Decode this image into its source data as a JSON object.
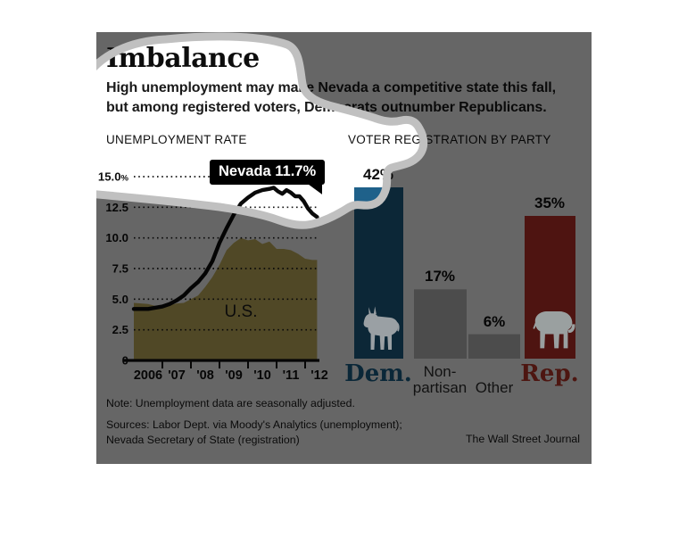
{
  "header": {
    "title": "Imbalance",
    "subtitle_line1": "High unemployment may make Nevada a competitive state this fall,",
    "subtitle_line2": "but among registered voters, Democrats outnumber Republicans."
  },
  "left_chart": {
    "heading": "UNEMPLOYMENT RATE",
    "callout": "Nevada 11.7%",
    "area_label": "U.S."
  },
  "right_chart": {
    "heading": "VOTER REGISTRATION BY PARTY",
    "labels": {
      "dem": "Dem.",
      "non_line1": "Non-",
      "non_line2": "partisan",
      "other": "Other",
      "rep": "Rep."
    }
  },
  "footer": {
    "note": "Note: Unemployment data are seasonally adjusted.",
    "sources_line1": "Sources: Labor Dept. via Moody's Analytics (unemployment);",
    "sources_line2": "Nevada Secretary of State (registration)",
    "credit": "The Wall Street Journal"
  },
  "colors": {
    "us_area": "#c9b560",
    "dem_blue": "#1f618a",
    "rep_red": "#c2332b",
    "neutral_bar": "#bfbfbf",
    "dem_text": "#1b638c",
    "rep_text": "#c0392b",
    "nevada_line": "#0a0a0a",
    "halo_gray": "#c0c0c0",
    "dim_overlay": "rgba(0,0,0,0.6)",
    "icon_gray": "#9aa0a2"
  },
  "chart_data": [
    {
      "type": "line",
      "title": "UNEMPLOYMENT RATE",
      "unit": "percent",
      "ylim": [
        0,
        15
      ],
      "grid": "dotted",
      "x_ticks": [
        "2006",
        "'07",
        "'08",
        "'09",
        "'10",
        "'11",
        "'12"
      ],
      "y_ticks": [
        "0",
        "2.5",
        "5.0",
        "7.5",
        "10.0",
        "12.5",
        "15.0%"
      ],
      "grid_values": [
        2.5,
        5,
        7.5,
        10,
        12.5,
        15
      ],
      "annotation": {
        "text": "Nevada 11.7%",
        "value": 11.7
      },
      "series": [
        {
          "name": "Nevada",
          "style": "line",
          "color": "#0a0a0a",
          "x": [
            2006,
            2006.25,
            2006.5,
            2006.75,
            2007,
            2007.25,
            2007.5,
            2007.75,
            2008,
            2008.25,
            2008.5,
            2008.75,
            2009,
            2009.25,
            2009.5,
            2009.75,
            2010,
            2010.25,
            2010.5,
            2010.75,
            2010.9,
            2011.05,
            2011.2,
            2011.35,
            2011.5,
            2011.65,
            2011.8,
            2011.95,
            2012.1,
            2012.25,
            2012.42
          ],
          "y": [
            4.2,
            4.2,
            4.2,
            4.3,
            4.4,
            4.6,
            4.9,
            5.3,
            5.9,
            6.4,
            7.1,
            8.1,
            9.6,
            10.8,
            11.9,
            12.8,
            13.3,
            13.7,
            13.9,
            14.0,
            14.1,
            13.8,
            13.6,
            13.9,
            13.7,
            13.4,
            13.4,
            13.0,
            12.4,
            12.0,
            11.7
          ]
        },
        {
          "name": "U.S.",
          "style": "area",
          "color": "#c9b560",
          "x": [
            2006,
            2006.25,
            2006.5,
            2006.75,
            2007,
            2007.25,
            2007.5,
            2007.75,
            2008,
            2008.25,
            2008.5,
            2008.75,
            2009,
            2009.25,
            2009.5,
            2009.75,
            2010,
            2010.25,
            2010.5,
            2010.75,
            2011,
            2011.25,
            2011.5,
            2011.75,
            2012,
            2012.25,
            2012.42
          ],
          "y": [
            4.7,
            4.65,
            4.6,
            4.45,
            4.5,
            4.5,
            4.65,
            4.7,
            5.0,
            5.3,
            6.0,
            6.8,
            7.8,
            9.0,
            9.6,
            10.0,
            9.8,
            9.9,
            9.5,
            9.7,
            9.1,
            9.1,
            9.0,
            8.7,
            8.3,
            8.2,
            8.2
          ]
        }
      ]
    },
    {
      "type": "bar",
      "title": "VOTER REGISTRATION BY PARTY",
      "categories": [
        "Dem.",
        "Non-partisan",
        "Other",
        "Rep."
      ],
      "values": [
        42,
        17,
        6,
        35
      ],
      "unit": "%",
      "value_labels": [
        "42%",
        "17%",
        "6%",
        "35%"
      ],
      "bar_colors": [
        "#1f618a",
        "#bfbfbf",
        "#bfbfbf",
        "#c2332b"
      ]
    }
  ]
}
